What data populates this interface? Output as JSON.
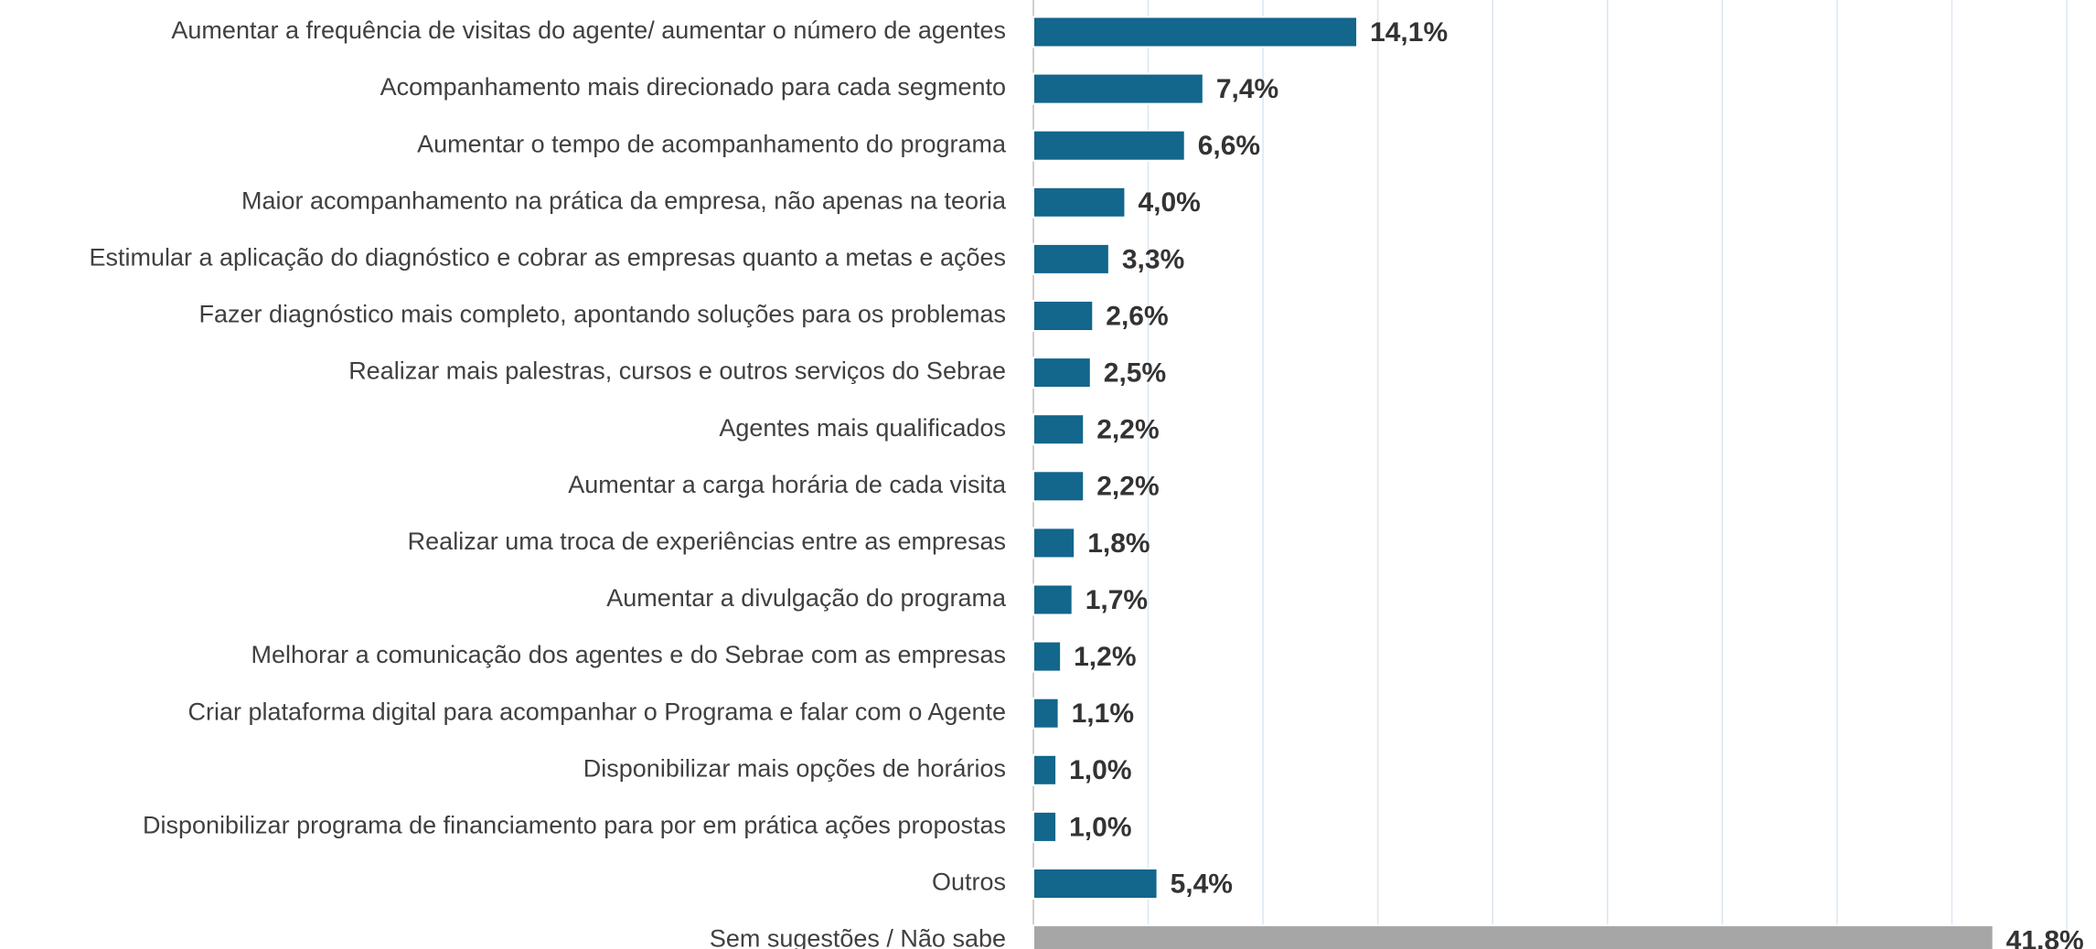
{
  "chart_data": {
    "type": "hbar",
    "categories": [
      "Aumentar a frequência de visitas do agente/ aumentar o número de agentes",
      "Acompanhamento mais direcionado para cada segmento",
      "Aumentar o tempo de acompanhamento do programa",
      "Maior acompanhamento na prática da empresa, não apenas na teoria",
      "Estimular a aplicação do diagnóstico e cobrar as empresas quanto a metas e ações",
      "Fazer diagnóstico mais completo, apontando soluções para os problemas",
      "Realizar mais palestras, cursos e outros serviços do Sebrae",
      "Agentes mais qualificados",
      "Aumentar a carga horária de cada visita",
      "Realizar uma troca de experiências entre as empresas",
      "Aumentar a divulgação do programa",
      "Melhorar a comunicação dos agentes e do Sebrae com as empresas",
      "Criar plataforma digital para acompanhar o Programa e falar com o Agente",
      "Disponibilizar mais opções de horários",
      "Disponibilizar programa de financiamento para por em prática ações propostas",
      "Outros",
      "Sem sugestões / Não sabe"
    ],
    "values": [
      14.1,
      7.4,
      6.6,
      4.0,
      3.3,
      2.6,
      2.5,
      2.2,
      2.2,
      1.8,
      1.7,
      1.2,
      1.1,
      1.0,
      1.0,
      5.4,
      41.8
    ],
    "value_labels": [
      "14,1%",
      "7,4%",
      "6,6%",
      "4,0%",
      "3,3%",
      "2,6%",
      "2,5%",
      "2,2%",
      "2,2%",
      "1,8%",
      "1,7%",
      "1,2%",
      "1,1%",
      "1,0%",
      "1,0%",
      "5,4%",
      "41,8%"
    ],
    "colors": [
      "#13668c",
      "#13668c",
      "#13668c",
      "#13668c",
      "#13668c",
      "#13668c",
      "#13668c",
      "#13668c",
      "#13668c",
      "#13668c",
      "#13668c",
      "#13668c",
      "#13668c",
      "#13668c",
      "#13668c",
      "#13668c",
      "#a6a6a6"
    ],
    "xlim": [
      0,
      45
    ],
    "xticks": [
      0,
      5,
      10,
      15,
      20,
      25,
      30,
      35,
      40,
      45
    ],
    "grid": true
  }
}
